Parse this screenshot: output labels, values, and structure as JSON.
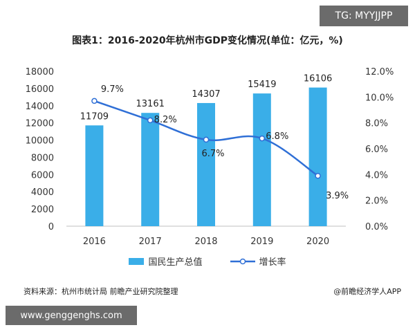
{
  "badge_top": "TG: MYYJJPP",
  "badge_url": "www.genggenghs.com",
  "footer": {
    "source": "资料来源：杭州市统计局 前瞻产业研究院整理",
    "brand": "@前瞻经济学人APP"
  },
  "chart_data": {
    "type": "bar",
    "title": "图表1：2016-2020年杭州市GDP变化情况(单位：亿元，%)",
    "categories": [
      "2016",
      "2017",
      "2018",
      "2019",
      "2020"
    ],
    "series": [
      {
        "name": "国民生产总值",
        "type": "bar",
        "axis": "left",
        "color": "#3aaee8",
        "values": [
          11709,
          13161,
          14307,
          15419,
          16106
        ],
        "labels": [
          "11709",
          "13161",
          "14307",
          "15419",
          "16106"
        ]
      },
      {
        "name": "增长率",
        "type": "line",
        "axis": "right",
        "color": "#2f6fd6",
        "values": [
          9.7,
          8.2,
          6.7,
          6.8,
          3.9
        ],
        "labels": [
          "9.7%",
          "8.2%",
          "6.7%",
          "6.8%",
          "3.9%"
        ]
      }
    ],
    "y_left": {
      "range": [
        0,
        18000
      ],
      "ticks": [
        "0",
        "2000",
        "4000",
        "6000",
        "8000",
        "10000",
        "12000",
        "14000",
        "16000",
        "18000"
      ]
    },
    "y_right": {
      "range": [
        0,
        12
      ],
      "ticks": [
        "0.0%",
        "2.0%",
        "4.0%",
        "6.0%",
        "8.0%",
        "10.0%",
        "12.0%"
      ]
    },
    "grid": false,
    "legend_position": "bottom"
  }
}
